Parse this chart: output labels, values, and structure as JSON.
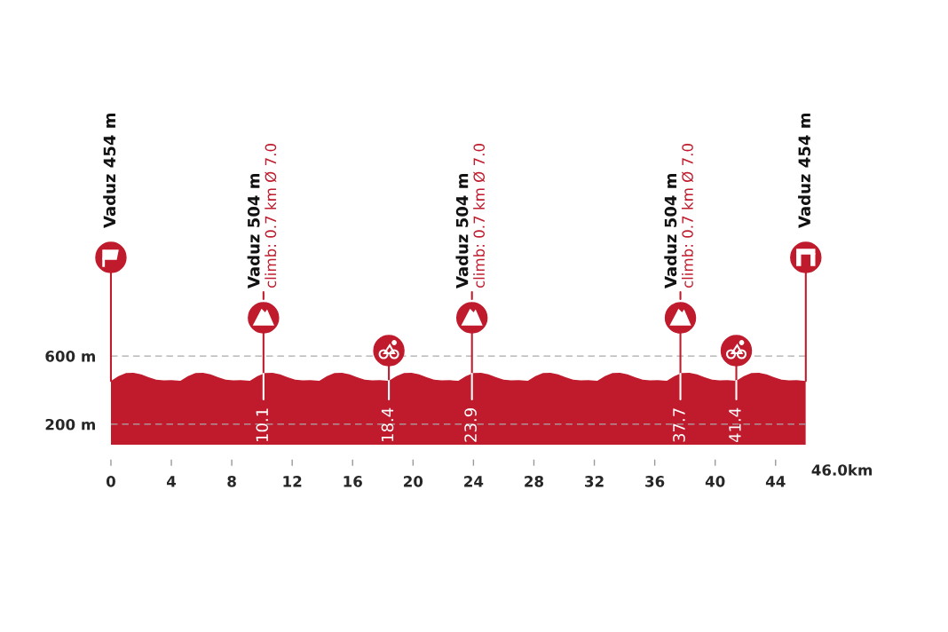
{
  "chart_data": {
    "type": "area",
    "color": "#bf1b2c",
    "x": [
      0,
      0.5,
      1,
      1.5,
      2,
      2.5,
      3,
      3.5,
      4,
      4.6,
      5.1,
      5.6,
      6.1,
      6.6,
      7.1,
      7.6,
      8.1,
      8.6,
      9.2,
      9.7,
      10.2,
      10.7,
      11.2,
      11.7,
      12.2,
      12.7,
      13.2,
      13.8,
      14.3,
      14.8,
      15.3,
      15.8,
      16.3,
      16.8,
      17.3,
      17.8,
      18.4,
      18.9,
      19.4,
      19.9,
      20.4,
      20.9,
      21.4,
      21.9,
      22.4,
      23,
      23.5,
      24,
      24.5,
      25,
      25.5,
      26,
      26.5,
      27,
      27.6,
      28.1,
      28.6,
      29.1,
      29.6,
      30.1,
      30.6,
      31.1,
      31.6,
      32.2,
      32.7,
      33.2,
      33.7,
      34.2,
      34.7,
      35.2,
      35.7,
      36.2,
      36.8,
      37.3,
      37.8,
      38.3,
      38.8,
      39.3,
      39.8,
      40.3,
      40.8,
      41.4,
      41.9,
      42.4,
      42.9,
      43.4,
      43.9,
      44.4,
      44.9,
      45.4,
      45.7,
      46
    ],
    "values": [
      454,
      482,
      500,
      502,
      492,
      476,
      461,
      457,
      458,
      455,
      482,
      500,
      502,
      492,
      476,
      461,
      457,
      458,
      455,
      482,
      500,
      502,
      492,
      476,
      461,
      457,
      458,
      455,
      482,
      500,
      502,
      492,
      476,
      461,
      457,
      458,
      455,
      482,
      500,
      502,
      492,
      476,
      461,
      457,
      458,
      455,
      482,
      500,
      502,
      492,
      476,
      461,
      457,
      458,
      455,
      482,
      500,
      502,
      492,
      476,
      461,
      457,
      458,
      455,
      482,
      500,
      502,
      492,
      476,
      461,
      457,
      458,
      455,
      482,
      500,
      502,
      492,
      476,
      461,
      457,
      458,
      455,
      482,
      500,
      502,
      492,
      476,
      461,
      457,
      458,
      456,
      454
    ],
    "xlim": [
      0,
      46
    ],
    "xticks": [
      0,
      4,
      8,
      12,
      16,
      20,
      24,
      28,
      32,
      36,
      40,
      44
    ],
    "ylim": [
      80,
      600
    ],
    "yticks": [
      {
        "value": 200,
        "label": "200 m"
      },
      {
        "value": 600,
        "label": "600 m"
      }
    ],
    "ref_lines": [
      {
        "axis": "y",
        "value": 600,
        "label": null,
        "color": "#aaaaaa",
        "line_style": "dashed"
      },
      {
        "axis": "y",
        "value": 200,
        "label": null,
        "color": "#aaaaaa",
        "line_style": "dashed"
      },
      {
        "axis": "x",
        "value": 10.1,
        "label": "10.1"
      },
      {
        "axis": "x",
        "value": 18.4,
        "label": "18.4"
      },
      {
        "axis": "x",
        "value": 23.9,
        "label": "23.9"
      },
      {
        "axis": "x",
        "value": 37.7,
        "label": "37.7"
      },
      {
        "axis": "x",
        "value": 41.4,
        "label": "41.4"
      }
    ],
    "annotations": [
      "Vaduz 454 m",
      "Vaduz 504 m\nclimb: 0.7 km Ø 7.0",
      "Vaduz 504 m\nclimb: 0.7 km Ø 7.0",
      "Vaduz 504 m\nclimb: 0.7 km Ø 7.0",
      "Vaduz 454 m",
      "46.0km"
    ]
  }
}
